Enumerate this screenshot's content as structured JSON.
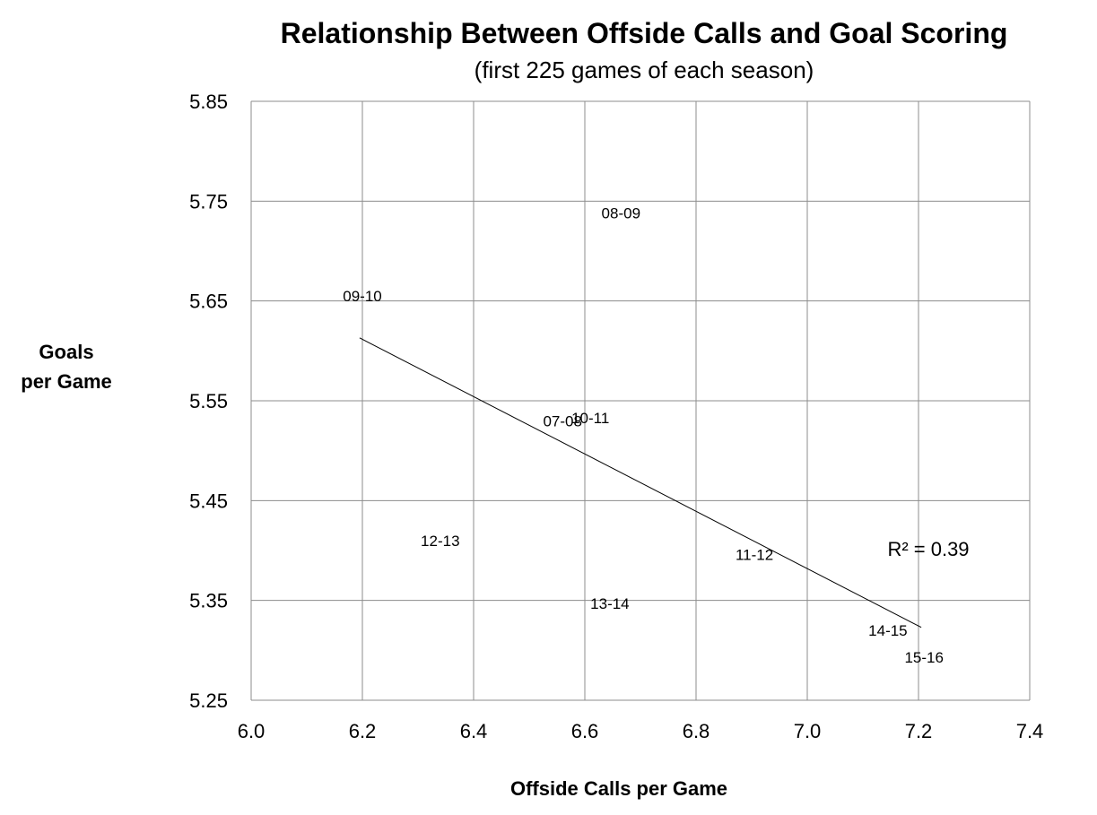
{
  "chart_data": {
    "type": "scatter",
    "title": "Relationship Between Offside Calls and Goal Scoring",
    "subtitle": "(first 225 games of each season)",
    "xlabel": "Offside Calls per Game",
    "ylabel": [
      "Goals",
      "per Game"
    ],
    "xlim": [
      6.0,
      7.4
    ],
    "ylim": [
      5.25,
      5.85
    ],
    "x_ticks": [
      "6.0",
      "6.2",
      "6.4",
      "6.6",
      "6.8",
      "7.0",
      "7.2",
      "7.4"
    ],
    "y_ticks": [
      "5.85",
      "5.75",
      "5.65",
      "5.55",
      "5.45",
      "5.35",
      "5.25"
    ],
    "grid": true,
    "points": [
      {
        "label": "09-10",
        "x": 6.2,
        "y": 5.655
      },
      {
        "label": "08-09",
        "x": 6.665,
        "y": 5.738
      },
      {
        "label": "07-08",
        "x": 6.56,
        "y": 5.53
      },
      {
        "label": "10-11",
        "x": 6.61,
        "y": 5.533
      },
      {
        "label": "12-13",
        "x": 6.34,
        "y": 5.41
      },
      {
        "label": "13-14",
        "x": 6.645,
        "y": 5.347
      },
      {
        "label": "11-12",
        "x": 6.905,
        "y": 5.396
      },
      {
        "label": "14-15",
        "x": 7.145,
        "y": 5.32
      },
      {
        "label": "15-16",
        "x": 7.21,
        "y": 5.293
      }
    ],
    "trendline": {
      "x": [
        6.195,
        7.205
      ],
      "y": [
        5.613,
        5.323
      ]
    },
    "r_squared_label": "R² = 0.39"
  }
}
